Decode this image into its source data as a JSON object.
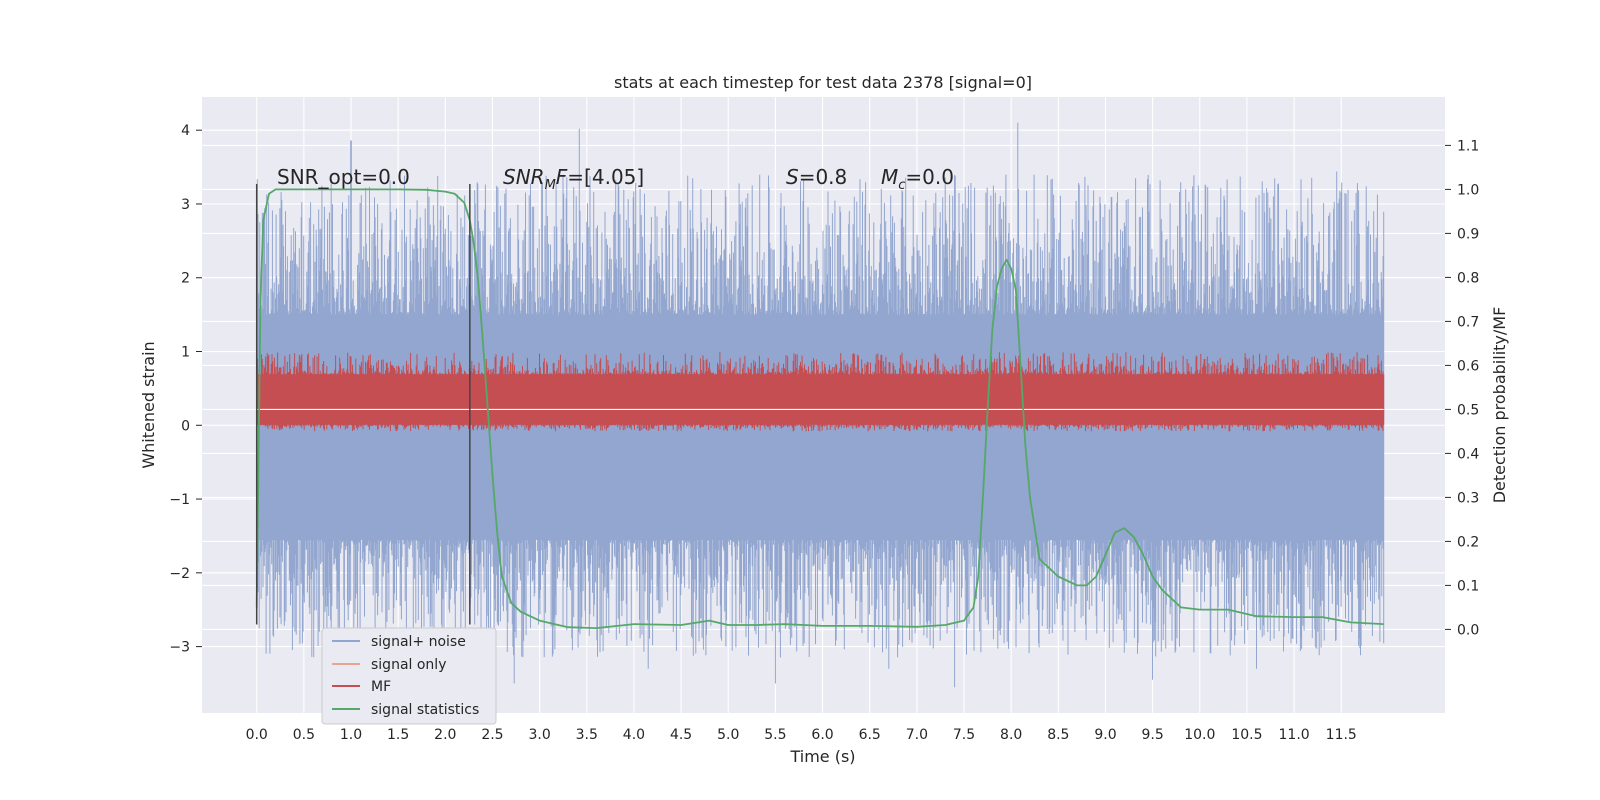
{
  "chart_data": {
    "type": "line",
    "title": "stats at each timestep for test data 2378 [signal=0]",
    "xlabel": "Time (s)",
    "ylabel": "Whitened strain",
    "y2label": "Detection probability/MF",
    "xlim": [
      -0.58,
      12.6
    ],
    "ylim": [
      -3.9,
      4.45
    ],
    "y2lim": [
      -0.19,
      1.21
    ],
    "x_ticks": [
      0.0,
      0.5,
      1.0,
      1.5,
      2.0,
      2.5,
      3.0,
      3.5,
      4.0,
      4.5,
      5.0,
      5.5,
      6.0,
      6.5,
      7.0,
      7.5,
      8.0,
      8.5,
      9.0,
      9.5,
      10.0,
      10.5,
      11.0,
      11.5
    ],
    "x_tick_labels": [
      "0.0",
      "0.5",
      "1.0",
      "1.5",
      "2.0",
      "2.5",
      "3.0",
      "3.5",
      "4.0",
      "4.5",
      "5.0",
      "5.5",
      "6.0",
      "6.5",
      "7.0",
      "7.5",
      "8.0",
      "8.5",
      "9.0",
      "9.5",
      "10.0",
      "10.5",
      "11.0",
      "11.5"
    ],
    "y_ticks": [
      -3,
      -2,
      -1,
      0,
      1,
      2,
      3,
      4
    ],
    "y_tick_labels": [
      "−3",
      "−2",
      "−1",
      "0",
      "1",
      "2",
      "3",
      "4"
    ],
    "y2_ticks": [
      0.0,
      0.1,
      0.2,
      0.3,
      0.4,
      0.5,
      0.6,
      0.7,
      0.8,
      0.9,
      1.0,
      1.1
    ],
    "y2_tick_labels": [
      "0.0",
      "0.1",
      "0.2",
      "0.3",
      "0.4",
      "0.5",
      "0.6",
      "0.7",
      "0.8",
      "0.9",
      "1.0",
      "1.1"
    ],
    "grid": true,
    "legend_position": "lower-left",
    "annotations": {
      "snr_opt": "SNR_opt=0.0",
      "snr_mf_main": "SNR",
      "snr_mf_sub": "M",
      "snr_mf_rest": "F=[4.05]",
      "s_symbol": "S",
      "s_value": "=0.8",
      "mc_symbol": "M",
      "mc_sub": "c",
      "mc_value": "=0.0"
    },
    "vertical_markers": [
      {
        "x": 0.0,
        "y_range": [
          -2.7,
          3.27
        ]
      },
      {
        "x": 2.26,
        "y_range": [
          -2.7,
          3.27
        ]
      }
    ],
    "series": [
      {
        "name": "signal+ noise",
        "axis": "left",
        "color": "#92a6cf",
        "kind": "noise",
        "x_range": [
          0.0,
          11.95
        ],
        "body_range": [
          -1.55,
          1.5
        ],
        "peaks": [
          {
            "x": 1.0,
            "y": 3.86
          },
          {
            "x": 3.42,
            "y": 4.02
          },
          {
            "x": 8.07,
            "y": 4.1
          },
          {
            "x": 11.45,
            "y": 3.44
          },
          {
            "x": 7.3,
            "y": 3.36
          },
          {
            "x": 2.73,
            "y": -3.5
          },
          {
            "x": 9.5,
            "y": -3.45
          },
          {
            "x": 7.4,
            "y": -3.55
          },
          {
            "x": 5.5,
            "y": -3.5
          },
          {
            "x": 4.15,
            "y": -3.3
          },
          {
            "x": 10.6,
            "y": -3.3
          },
          {
            "x": 6.7,
            "y": -3.3
          }
        ]
      },
      {
        "name": "signal only",
        "axis": "left",
        "color": "#e8a58c",
        "kind": "flat",
        "values": [
          0.0
        ]
      },
      {
        "name": "MF",
        "axis": "right",
        "color": "#c44e52",
        "kind": "noise",
        "x_range": [
          0.0,
          11.95
        ],
        "center": 0.5,
        "body_range": [
          0.465,
          0.58
        ],
        "extreme_range": [
          0.45,
          0.63
        ]
      },
      {
        "name": "signal statistics",
        "axis": "right",
        "color": "#55a868",
        "kind": "line",
        "x": [
          0.0,
          0.04,
          0.07,
          0.1,
          0.13,
          0.2,
          0.3,
          0.5,
          1.0,
          1.5,
          1.8,
          2.0,
          2.1,
          2.2,
          2.26,
          2.3,
          2.35,
          2.4,
          2.45,
          2.5,
          2.55,
          2.6,
          2.7,
          2.8,
          3.0,
          3.3,
          3.6,
          4.0,
          4.5,
          4.8,
          5.0,
          5.3,
          5.6,
          6.0,
          6.5,
          7.0,
          7.3,
          7.5,
          7.6,
          7.65,
          7.7,
          7.75,
          7.8,
          7.85,
          7.9,
          7.95,
          8.0,
          8.05,
          8.1,
          8.15,
          8.2,
          8.3,
          8.4,
          8.5,
          8.6,
          8.7,
          8.8,
          8.9,
          9.0,
          9.1,
          9.2,
          9.3,
          9.4,
          9.5,
          9.6,
          9.8,
          10.0,
          10.3,
          10.6,
          11.0,
          11.3,
          11.6,
          11.95
        ],
        "values": [
          0.05,
          0.75,
          0.93,
          0.96,
          0.99,
          1.0,
          1.0,
          1.0,
          1.0,
          1.0,
          0.999,
          0.995,
          0.99,
          0.97,
          0.93,
          0.88,
          0.79,
          0.65,
          0.5,
          0.35,
          0.22,
          0.12,
          0.06,
          0.04,
          0.02,
          0.005,
          0.003,
          0.012,
          0.01,
          0.02,
          0.01,
          0.01,
          0.012,
          0.008,
          0.008,
          0.006,
          0.01,
          0.02,
          0.05,
          0.12,
          0.3,
          0.5,
          0.68,
          0.78,
          0.82,
          0.84,
          0.82,
          0.77,
          0.6,
          0.42,
          0.3,
          0.16,
          0.14,
          0.12,
          0.11,
          0.1,
          0.1,
          0.12,
          0.17,
          0.22,
          0.23,
          0.21,
          0.17,
          0.12,
          0.09,
          0.05,
          0.045,
          0.045,
          0.03,
          0.028,
          0.028,
          0.016,
          0.012
        ]
      }
    ]
  }
}
